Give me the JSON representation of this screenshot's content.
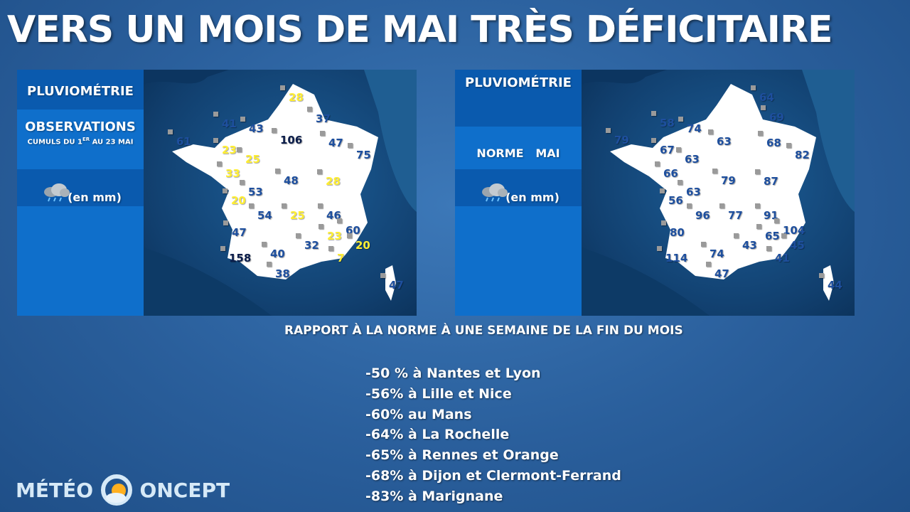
{
  "title": "VERS UN MOIS DE MAI TRÈS DÉFICITAIRE",
  "left_panel": {
    "header": "PLUVIOMÉTRIE",
    "observations": "OBSERVATIONS",
    "cumuls": "CUMULS DU 1ER AU 23 MAI",
    "unit": "(en mm)",
    "values": [
      {
        "v": "28",
        "c": "yellow"
      },
      {
        "v": "37",
        "c": "blue"
      },
      {
        "v": "41",
        "c": "blue"
      },
      {
        "v": "43",
        "c": "blue"
      },
      {
        "v": "106",
        "c": "dark"
      },
      {
        "v": "47",
        "c": "blue"
      },
      {
        "v": "61",
        "c": "blue"
      },
      {
        "v": "23",
        "c": "yellow"
      },
      {
        "v": "25",
        "c": "yellow"
      },
      {
        "v": "75",
        "c": "blue"
      },
      {
        "v": "33",
        "c": "yellow"
      },
      {
        "v": "48",
        "c": "blue"
      },
      {
        "v": "28",
        "c": "yellow"
      },
      {
        "v": "53",
        "c": "blue"
      },
      {
        "v": "20",
        "c": "yellow"
      },
      {
        "v": "54",
        "c": "blue"
      },
      {
        "v": "25",
        "c": "yellow"
      },
      {
        "v": "46",
        "c": "blue"
      },
      {
        "v": "60",
        "c": "blue"
      },
      {
        "v": "47",
        "c": "blue"
      },
      {
        "v": "23",
        "c": "yellow"
      },
      {
        "v": "20",
        "c": "yellow"
      },
      {
        "v": "32",
        "c": "blue"
      },
      {
        "v": "158",
        "c": "dark"
      },
      {
        "v": "40",
        "c": "blue"
      },
      {
        "v": "7",
        "c": "yellow"
      },
      {
        "v": "38",
        "c": "blue"
      },
      {
        "v": "47",
        "c": "blue"
      }
    ]
  },
  "right_panel": {
    "header": "PLUVIOMÉTRIE",
    "norme": "NORME",
    "mai": "MAI",
    "unit": "(en mm)",
    "values": [
      {
        "v": "64",
        "c": "blue"
      },
      {
        "v": "69",
        "c": "blue"
      },
      {
        "v": "58",
        "c": "blue"
      },
      {
        "v": "74",
        "c": "blue"
      },
      {
        "v": "63",
        "c": "blue"
      },
      {
        "v": "68",
        "c": "blue"
      },
      {
        "v": "79",
        "c": "blue"
      },
      {
        "v": "67",
        "c": "blue"
      },
      {
        "v": "63",
        "c": "blue"
      },
      {
        "v": "82",
        "c": "blue"
      },
      {
        "v": "66",
        "c": "blue"
      },
      {
        "v": "79",
        "c": "blue"
      },
      {
        "v": "87",
        "c": "blue"
      },
      {
        "v": "63",
        "c": "blue"
      },
      {
        "v": "56",
        "c": "blue"
      },
      {
        "v": "96",
        "c": "blue"
      },
      {
        "v": "77",
        "c": "blue"
      },
      {
        "v": "91",
        "c": "blue"
      },
      {
        "v": "80",
        "c": "blue"
      },
      {
        "v": "104",
        "c": "blue"
      },
      {
        "v": "65",
        "c": "blue"
      },
      {
        "v": "45",
        "c": "blue"
      },
      {
        "v": "43",
        "c": "blue"
      },
      {
        "v": "114",
        "c": "blue"
      },
      {
        "v": "74",
        "c": "blue"
      },
      {
        "v": "41",
        "c": "blue"
      },
      {
        "v": "47",
        "c": "blue"
      },
      {
        "v": "44",
        "c": "blue"
      }
    ]
  },
  "subtitle": "RAPPORT À LA NORME À UNE SEMAINE DE LA FIN DU MOIS",
  "stats": [
    "-50 % à Nantes et Lyon",
    "-56% à Lille et Nice",
    "-60% au Mans",
    "-64% à La Rochelle",
    "-65% à Rennes et Orange",
    "-68% à Dijon et Clermont-Ferrand",
    "-83% à Marignane"
  ],
  "logo": {
    "left": "MÉTÉO",
    "right": "ONCEPT"
  },
  "colors": {
    "yellow": "#ffee33",
    "blue": "#1e4f9e",
    "dark": "#0b1d4a",
    "sidebar": "#0f6fcb",
    "sidebar_dark": "#0a5aae"
  }
}
